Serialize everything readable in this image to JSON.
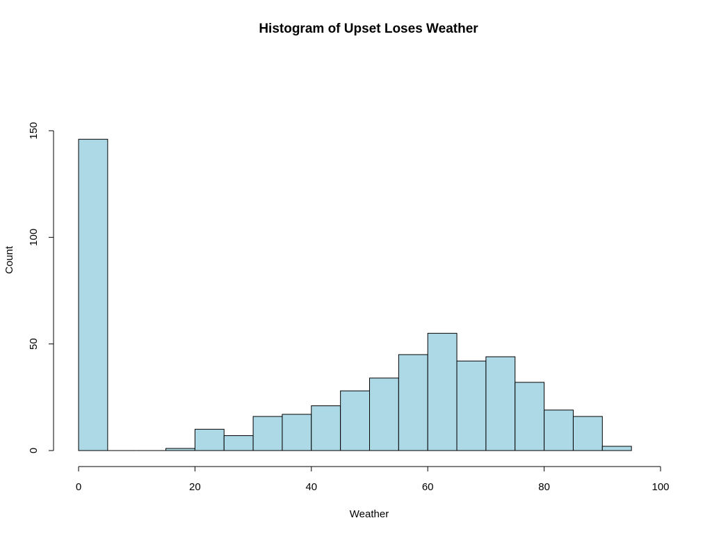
{
  "chart_data": {
    "type": "bar",
    "title": "Histogram of Upset Loses Weather",
    "xlabel": "Weather",
    "ylabel": "Count",
    "bin_width": 5,
    "bins": [
      {
        "start": 0,
        "end": 5,
        "count": 146
      },
      {
        "start": 5,
        "end": 10,
        "count": 0
      },
      {
        "start": 10,
        "end": 15,
        "count": 0
      },
      {
        "start": 15,
        "end": 20,
        "count": 1
      },
      {
        "start": 20,
        "end": 25,
        "count": 10
      },
      {
        "start": 25,
        "end": 30,
        "count": 7
      },
      {
        "start": 30,
        "end": 35,
        "count": 16
      },
      {
        "start": 35,
        "end": 40,
        "count": 17
      },
      {
        "start": 40,
        "end": 45,
        "count": 21
      },
      {
        "start": 45,
        "end": 50,
        "count": 28
      },
      {
        "start": 50,
        "end": 55,
        "count": 34
      },
      {
        "start": 55,
        "end": 60,
        "count": 45
      },
      {
        "start": 60,
        "end": 65,
        "count": 55
      },
      {
        "start": 65,
        "end": 70,
        "count": 42
      },
      {
        "start": 70,
        "end": 75,
        "count": 44
      },
      {
        "start": 75,
        "end": 80,
        "count": 32
      },
      {
        "start": 80,
        "end": 85,
        "count": 19
      },
      {
        "start": 85,
        "end": 90,
        "count": 16
      },
      {
        "start": 90,
        "end": 95,
        "count": 2
      }
    ],
    "xlim": [
      0,
      100
    ],
    "ylim": [
      0,
      150
    ],
    "x_ticks": [
      0,
      20,
      40,
      60,
      80,
      100
    ],
    "y_ticks": [
      0,
      50,
      100,
      150
    ],
    "bar_color": "#add8e6",
    "edge_color": "#000000",
    "grid": false,
    "legend": "none"
  }
}
